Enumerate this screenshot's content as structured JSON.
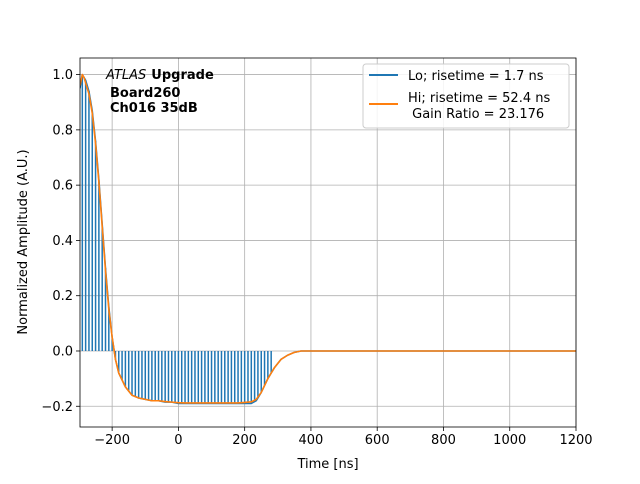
{
  "chart_data": {
    "type": "line",
    "xlabel": "Time [ns]",
    "ylabel": "Normalized Amplitude (A.U.)",
    "xlim": [
      -297,
      1200
    ],
    "ylim": [
      -0.275,
      1.06
    ],
    "xticks": [
      -200,
      0,
      200,
      400,
      600,
      800,
      1000,
      1200
    ],
    "xtick_labels": [
      "−200",
      "0",
      "200",
      "400",
      "600",
      "800",
      "1000",
      "1200"
    ],
    "yticks": [
      -0.2,
      0.0,
      0.2,
      0.4,
      0.6,
      0.8,
      1.0
    ],
    "ytick_labels": [
      "−0.2",
      "0.0",
      "0.2",
      "0.4",
      "0.6",
      "0.8",
      "1.0"
    ],
    "grid": true,
    "legend_position": "top-right",
    "annotation": {
      "italic": "ATLAS",
      "bold": "Upgrade",
      "line2": "Board260",
      "line3": "Ch016 35dB"
    },
    "series": [
      {
        "name": "Lo; risetime = 1.7 ns",
        "color": "#1f77b4",
        "x": [
          -297,
          -290,
          -285,
          -280,
          -270,
          -260,
          -250,
          -240,
          -230,
          -220,
          -210,
          -200,
          -190,
          -180,
          -160,
          -140,
          -120,
          -100,
          -80,
          -60,
          -40,
          -20,
          0,
          20,
          40,
          60,
          80,
          100,
          120,
          140,
          160,
          180,
          200,
          220,
          235,
          250,
          270,
          290,
          310,
          330,
          350,
          370,
          400,
          450,
          500,
          600,
          700,
          800,
          900,
          1000,
          1100,
          1200
        ],
        "y": [
          0.95,
          1.0,
          0.99,
          0.98,
          0.94,
          0.87,
          0.76,
          0.62,
          0.46,
          0.3,
          0.16,
          0.05,
          -0.03,
          -0.08,
          -0.13,
          -0.16,
          -0.17,
          -0.175,
          -0.18,
          -0.18,
          -0.185,
          -0.185,
          -0.19,
          -0.19,
          -0.19,
          -0.19,
          -0.19,
          -0.19,
          -0.19,
          -0.19,
          -0.19,
          -0.19,
          -0.19,
          -0.19,
          -0.18,
          -0.15,
          -0.1,
          -0.06,
          -0.03,
          -0.015,
          -0.005,
          0.0,
          0.0,
          0.0,
          0.0,
          0.0,
          0.0,
          0.0,
          0.0,
          0.0,
          0.0,
          0.0
        ],
        "spike_x": [
          -290,
          -280,
          -270,
          -260,
          -250,
          -240,
          -230,
          -220,
          -210,
          -200,
          -190,
          -180,
          -170,
          -160,
          -150,
          -140,
          -130,
          -120,
          -110,
          -100,
          -90,
          -80,
          -70,
          -60,
          -50,
          -40,
          -30,
          -20,
          -10,
          0,
          10,
          20,
          30,
          40,
          50,
          60,
          70,
          80,
          90,
          100,
          110,
          120,
          130,
          140,
          150,
          160,
          170,
          180,
          190,
          200,
          210,
          220,
          230,
          240,
          250,
          260,
          270,
          280
        ],
        "spike_y": [
          0.0,
          0.0,
          0.0,
          0.0,
          0.0,
          0.0,
          0.0,
          0.0,
          0.0,
          0.0,
          0.0,
          0.0,
          0.0,
          0.0,
          0.0,
          0.0,
          0.0,
          0.0,
          0.0,
          0.0,
          0.0,
          0.0,
          0.0,
          0.0,
          0.0,
          0.0,
          0.0,
          0.0,
          0.0,
          0.0,
          0.0,
          0.0,
          0.0,
          0.0,
          0.0,
          0.0,
          0.0,
          0.0,
          0.0,
          0.0,
          0.0,
          0.0,
          0.0,
          0.0,
          0.0,
          0.0,
          0.0,
          0.0,
          0.0,
          0.0,
          0.0,
          0.0,
          0.0,
          0.0,
          0.0,
          0.0,
          0.0,
          0.0
        ]
      },
      {
        "name": "Hi; risetime = 52.4 ns\n Gain Ratio = 23.176",
        "color": "#ff7f0e",
        "x": [
          -297,
          -290,
          -285,
          -280,
          -270,
          -260,
          -250,
          -240,
          -230,
          -220,
          -210,
          -200,
          -190,
          -180,
          -160,
          -140,
          -120,
          -100,
          -80,
          -60,
          -40,
          -20,
          0,
          20,
          40,
          60,
          80,
          100,
          120,
          140,
          160,
          180,
          200,
          220,
          235,
          250,
          270,
          290,
          310,
          330,
          350,
          370,
          400,
          450,
          500,
          600,
          700,
          800,
          900,
          1000,
          1100,
          1200
        ],
        "y": [
          0.96,
          1.0,
          0.99,
          0.97,
          0.93,
          0.86,
          0.75,
          0.61,
          0.45,
          0.29,
          0.15,
          0.05,
          -0.03,
          -0.08,
          -0.13,
          -0.16,
          -0.17,
          -0.175,
          -0.18,
          -0.18,
          -0.183,
          -0.185,
          -0.187,
          -0.188,
          -0.188,
          -0.188,
          -0.188,
          -0.188,
          -0.188,
          -0.188,
          -0.188,
          -0.188,
          -0.186,
          -0.184,
          -0.175,
          -0.15,
          -0.1,
          -0.06,
          -0.03,
          -0.015,
          -0.005,
          0.0,
          0.0,
          0.0,
          0.0,
          0.0,
          0.0,
          0.0,
          0.0,
          0.0,
          0.0,
          0.0
        ]
      }
    ]
  }
}
